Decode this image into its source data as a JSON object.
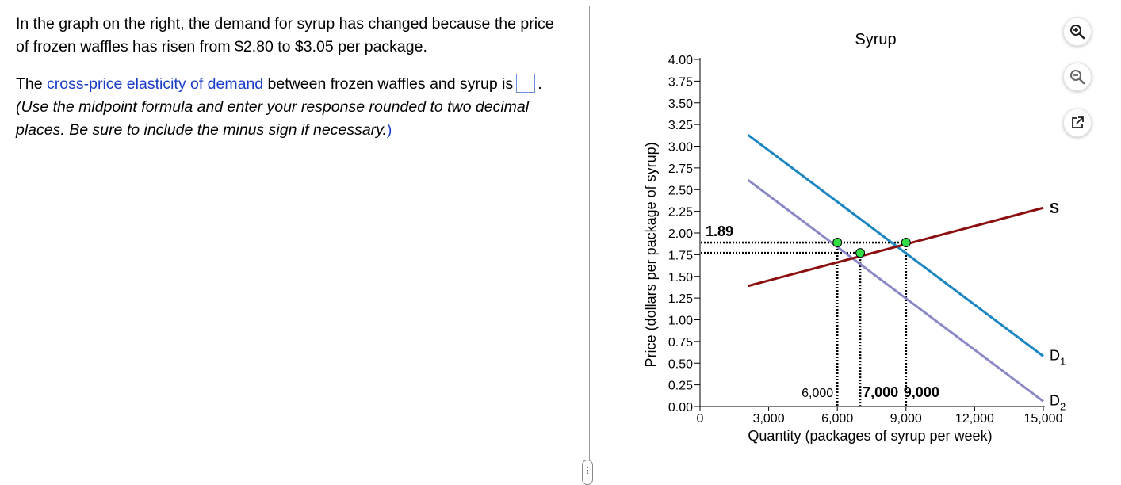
{
  "question": {
    "intro": "In the graph on the right, the demand for syrup has changed because the price of frozen waffles has risen from $2.80 to $3.05 per package.",
    "prefix": "The ",
    "link_text": "cross-price elasticity of demand",
    "after_link": " between frozen waffles and syrup is",
    "after_box": ". ",
    "instruction": "(Use the midpoint formula and enter your response rounded to two decimal places. Be sure to include the minus sign if necessary.",
    "closing_paren": ")"
  },
  "toolbar": {
    "zoom_in": "zoom-in-icon",
    "zoom_out": "zoom-out-icon",
    "popout": "popout-icon"
  },
  "colors": {
    "d1": "#1a87c2",
    "d2": "#8b88c8",
    "supply": "#8b0f0f",
    "point": "#33dd44",
    "link": "#1a3cc8"
  },
  "chart_data": {
    "type": "line",
    "title": "Syrup",
    "xlabel": "Quantity (packages of syrup per week)",
    "ylabel": "Price (dollars per package of syrup)",
    "xlim": [
      0,
      15000
    ],
    "ylim": [
      0,
      4.0
    ],
    "x_ticks": [
      0,
      3000,
      6000,
      9000,
      12000,
      15000
    ],
    "x_tick_labels": [
      "0",
      "3,000",
      "6,000",
      "9,000",
      "12,000",
      "15,000"
    ],
    "y_ticks": [
      0,
      0.25,
      0.5,
      0.75,
      1.0,
      1.25,
      1.5,
      1.75,
      2.0,
      2.25,
      2.5,
      2.75,
      3.0,
      3.25,
      3.5,
      3.75,
      4.0
    ],
    "y_tick_labels": [
      "0.00",
      "0.25",
      "0.50",
      "0.75",
      "1.00",
      "1.25",
      "1.50",
      "1.75",
      "2.00",
      "2.25",
      "2.50",
      "2.75",
      "3.00",
      "3.25",
      "3.50",
      "3.75",
      "4.00"
    ],
    "series": [
      {
        "name": "D1",
        "label_main": "D",
        "label_sub": "1",
        "points": [
          [
            2100,
            3.13
          ],
          [
            15000,
            0.58
          ]
        ]
      },
      {
        "name": "D2",
        "label_main": "D",
        "label_sub": "2",
        "points": [
          [
            2100,
            2.61
          ],
          [
            15000,
            0.06
          ]
        ]
      },
      {
        "name": "S",
        "label_main": "S",
        "label_sub": "",
        "points": [
          [
            2100,
            1.39
          ],
          [
            15000,
            2.29
          ]
        ]
      }
    ],
    "points": [
      {
        "x": 6000,
        "y": 1.89
      },
      {
        "x": 7000,
        "y": 1.77
      },
      {
        "x": 9000,
        "y": 1.89
      }
    ],
    "guide_price": 1.89,
    "guide_price_2": 1.77,
    "annotations": {
      "price_label": "1.89",
      "q_label_1": "6,000",
      "q_label_2": "7,000",
      "q_label_3": "9,000"
    }
  }
}
